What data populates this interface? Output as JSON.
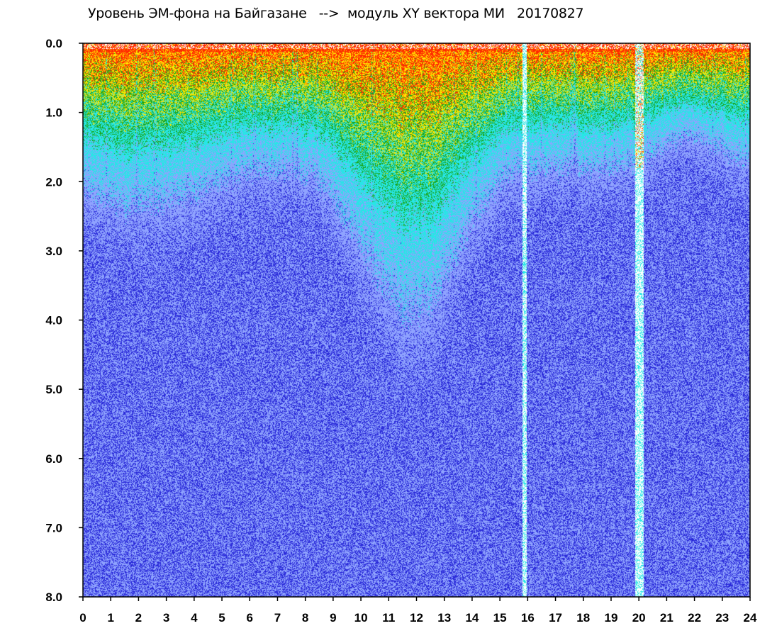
{
  "chart_data": {
    "type": "heatmap",
    "title": "Уровень ЭМ-фона на Байгазане   -->  модуль XY вектора МИ   20170827",
    "xlabel": "",
    "ylabel": "",
    "xlim": [
      0,
      24
    ],
    "ylim": [
      0.0,
      8.0
    ],
    "y_inverted": true,
    "x_ticks": [
      "0",
      "1",
      "2",
      "3",
      "4",
      "5",
      "6",
      "7",
      "8",
      "9",
      "10",
      "11",
      "12",
      "13",
      "14",
      "15",
      "16",
      "17",
      "18",
      "19",
      "20",
      "21",
      "22",
      "23",
      "24"
    ],
    "y_ticks": [
      "0.0",
      "1.0",
      "2.0",
      "3.0",
      "4.0",
      "5.0",
      "6.0",
      "7.0",
      "8.0"
    ],
    "colors": {
      "red": "#ff2a00",
      "yellow": "#ffe600",
      "green": "#1aa51a",
      "cyan": "#27e6e6",
      "light_blue": "#8fa3ff",
      "blue": "#2a2ad9",
      "background": "#ffffff"
    },
    "data_gaps_hours": [
      [
        15.8,
        15.95
      ],
      [
        19.85,
        20.15
      ]
    ]
  }
}
